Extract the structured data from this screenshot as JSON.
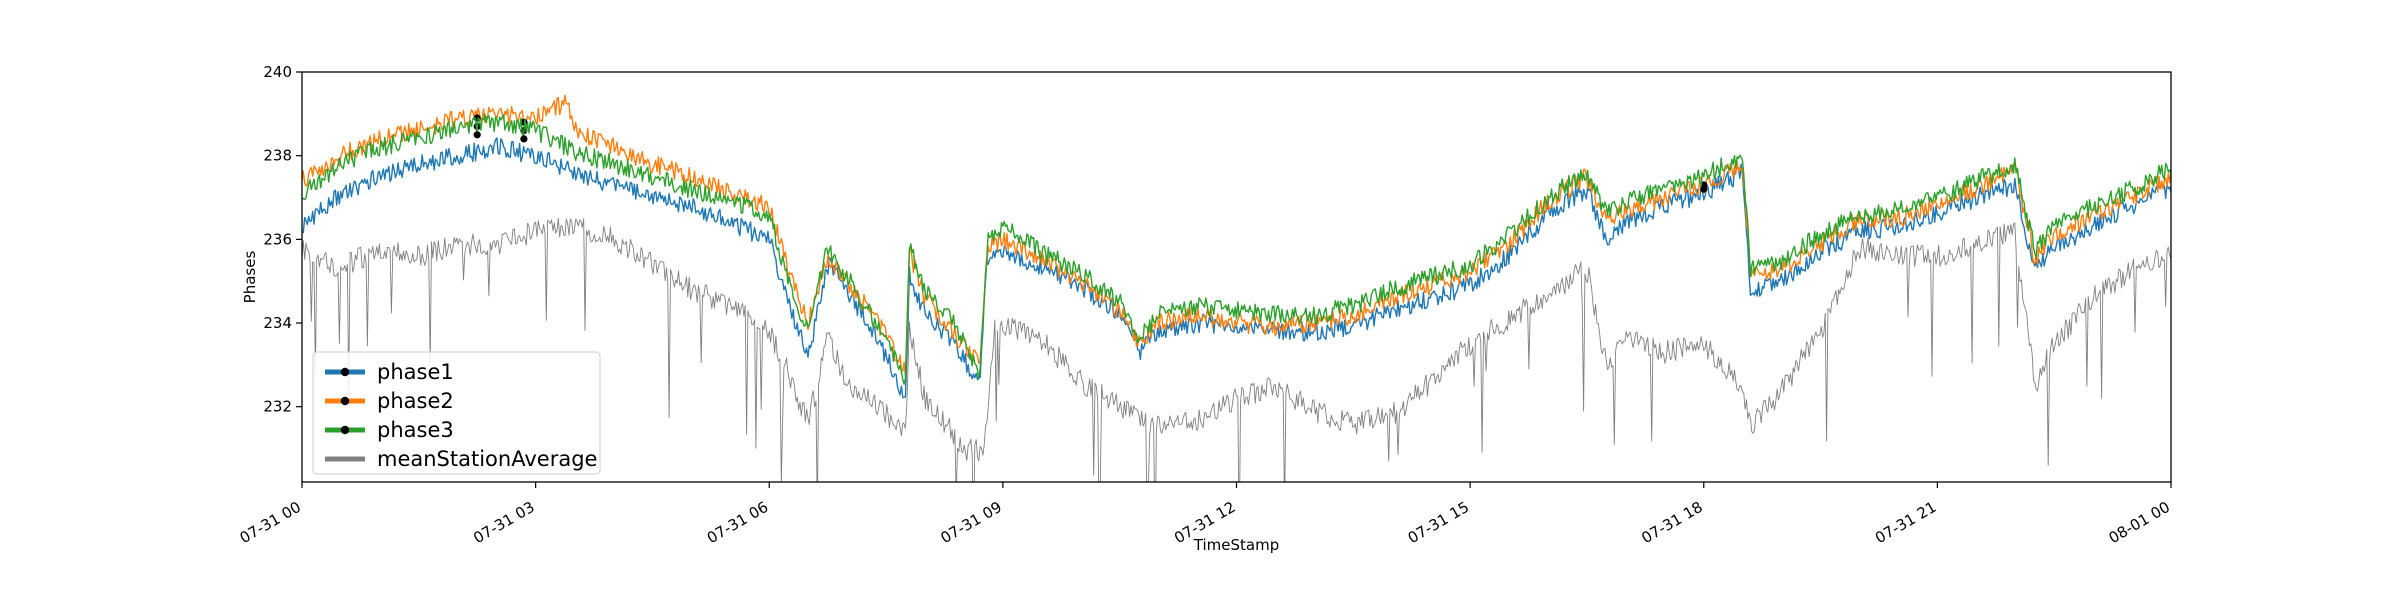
{
  "chart_data": {
    "type": "line",
    "xlabel": "TimeStamp",
    "ylabel": "Phases",
    "xlim": [
      "07-31 00:00",
      "08-01 00:00"
    ],
    "ylim": [
      230.2,
      240.0
    ],
    "x_ticks": [
      "07-31 00",
      "07-31 03",
      "07-31 06",
      "07-31 09",
      "07-31 12",
      "07-31 15",
      "07-31 18",
      "07-31 21",
      "08-01 00"
    ],
    "x_tick_hours": [
      0,
      3,
      6,
      9,
      12,
      15,
      18,
      21,
      24
    ],
    "y_ticks": [
      232,
      234,
      236,
      238,
      240
    ],
    "grid": false,
    "legend_position": "lower-left",
    "series": [
      {
        "name": "phase1",
        "color": "#1f77b4",
        "marker": "black dot",
        "points": [
          [
            0,
            236.3
          ],
          [
            0.5,
            237.1
          ],
          [
            1,
            237.5
          ],
          [
            1.5,
            237.8
          ],
          [
            2,
            238.0
          ],
          [
            2.5,
            238.2
          ],
          [
            3,
            238.0
          ],
          [
            3.5,
            237.6
          ],
          [
            4,
            237.3
          ],
          [
            4.5,
            237.0
          ],
          [
            5,
            236.8
          ],
          [
            5.5,
            236.4
          ],
          [
            6,
            236.0
          ],
          [
            6.25,
            234.5
          ],
          [
            6.5,
            233.2
          ],
          [
            6.75,
            235.4
          ],
          [
            7,
            234.8
          ],
          [
            7.4,
            233.6
          ],
          [
            7.75,
            232.2
          ],
          [
            7.8,
            235.2
          ],
          [
            8,
            234.2
          ],
          [
            8.4,
            233.5
          ],
          [
            8.7,
            232.5
          ],
          [
            8.8,
            235.6
          ],
          [
            9,
            235.8
          ],
          [
            9.5,
            235.3
          ],
          [
            10,
            234.9
          ],
          [
            10.5,
            234.2
          ],
          [
            10.75,
            233.3
          ],
          [
            11,
            233.8
          ],
          [
            11.5,
            234.0
          ],
          [
            12,
            233.9
          ],
          [
            12.5,
            233.8
          ],
          [
            13,
            233.8
          ],
          [
            13.5,
            233.9
          ],
          [
            14,
            234.3
          ],
          [
            14.5,
            234.6
          ],
          [
            15,
            234.9
          ],
          [
            15.5,
            235.6
          ],
          [
            16,
            236.6
          ],
          [
            16.5,
            237.2
          ],
          [
            16.75,
            236.0
          ],
          [
            17,
            236.4
          ],
          [
            17.5,
            236.8
          ],
          [
            18,
            237.1
          ],
          [
            18.5,
            237.6
          ],
          [
            18.6,
            234.8
          ],
          [
            19,
            235.0
          ],
          [
            19.5,
            235.7
          ],
          [
            20,
            236.2
          ],
          [
            20.5,
            236.3
          ],
          [
            21,
            236.6
          ],
          [
            21.5,
            237.0
          ],
          [
            22,
            237.3
          ],
          [
            22.25,
            235.3
          ],
          [
            22.5,
            235.8
          ],
          [
            23,
            236.3
          ],
          [
            23.5,
            236.8
          ],
          [
            24,
            237.2
          ]
        ],
        "markers": [
          [
            2.25,
            238.7
          ],
          [
            2.85,
            238.6
          ],
          [
            18,
            237.3
          ]
        ]
      },
      {
        "name": "phase2",
        "color": "#ff7f0e",
        "marker": "black dot",
        "points": [
          [
            0,
            237.4
          ],
          [
            0.5,
            238.0
          ],
          [
            1,
            238.4
          ],
          [
            1.5,
            238.6
          ],
          [
            2,
            238.9
          ],
          [
            2.5,
            239.0
          ],
          [
            3,
            238.9
          ],
          [
            3.4,
            239.3
          ],
          [
            3.5,
            238.6
          ],
          [
            4,
            238.2
          ],
          [
            4.5,
            237.8
          ],
          [
            5,
            237.5
          ],
          [
            5.5,
            237.1
          ],
          [
            6,
            236.8
          ],
          [
            6.25,
            235.2
          ],
          [
            6.5,
            234.0
          ],
          [
            6.75,
            235.6
          ],
          [
            7,
            235.0
          ],
          [
            7.4,
            234.0
          ],
          [
            7.75,
            232.8
          ],
          [
            7.8,
            235.7
          ],
          [
            8,
            234.6
          ],
          [
            8.4,
            233.7
          ],
          [
            8.7,
            233.0
          ],
          [
            8.8,
            235.8
          ],
          [
            9,
            236.0
          ],
          [
            9.5,
            235.5
          ],
          [
            10,
            235.0
          ],
          [
            10.5,
            234.3
          ],
          [
            10.75,
            233.5
          ],
          [
            11,
            234.0
          ],
          [
            11.5,
            234.2
          ],
          [
            12,
            234.0
          ],
          [
            12.5,
            233.9
          ],
          [
            13,
            234.0
          ],
          [
            13.5,
            234.2
          ],
          [
            14,
            234.6
          ],
          [
            14.5,
            234.9
          ],
          [
            15,
            235.2
          ],
          [
            15.5,
            235.9
          ],
          [
            16,
            236.9
          ],
          [
            16.5,
            237.5
          ],
          [
            16.75,
            236.4
          ],
          [
            17,
            236.7
          ],
          [
            17.5,
            237.0
          ],
          [
            18,
            237.3
          ],
          [
            18.5,
            237.8
          ],
          [
            18.6,
            235.1
          ],
          [
            19,
            235.3
          ],
          [
            19.5,
            235.9
          ],
          [
            20,
            236.5
          ],
          [
            20.5,
            236.5
          ],
          [
            21,
            236.9
          ],
          [
            21.5,
            237.2
          ],
          [
            22,
            237.7
          ],
          [
            22.25,
            235.5
          ],
          [
            22.5,
            236.1
          ],
          [
            23,
            236.6
          ],
          [
            23.5,
            237.0
          ],
          [
            24,
            237.5
          ]
        ],
        "markers": [
          [
            2.25,
            238.9
          ],
          [
            2.85,
            238.8
          ],
          [
            18,
            237.3
          ]
        ]
      },
      {
        "name": "phase3",
        "color": "#2ca02c",
        "marker": "black dot",
        "points": [
          [
            0,
            237.1
          ],
          [
            0.5,
            237.8
          ],
          [
            1,
            238.2
          ],
          [
            1.5,
            238.4
          ],
          [
            2,
            238.7
          ],
          [
            2.5,
            238.8
          ],
          [
            3,
            238.6
          ],
          [
            3.5,
            238.1
          ],
          [
            4,
            237.8
          ],
          [
            4.5,
            237.5
          ],
          [
            5,
            237.2
          ],
          [
            5.5,
            236.9
          ],
          [
            6,
            236.6
          ],
          [
            6.25,
            235.0
          ],
          [
            6.5,
            233.8
          ],
          [
            6.75,
            235.8
          ],
          [
            7,
            235.1
          ],
          [
            7.4,
            233.9
          ],
          [
            7.75,
            232.6
          ],
          [
            7.8,
            235.9
          ],
          [
            8,
            234.8
          ],
          [
            8.4,
            233.9
          ],
          [
            8.7,
            232.8
          ],
          [
            8.8,
            236.0
          ],
          [
            9,
            236.3
          ],
          [
            9.5,
            235.7
          ],
          [
            10,
            235.2
          ],
          [
            10.5,
            234.5
          ],
          [
            10.75,
            233.7
          ],
          [
            11,
            234.2
          ],
          [
            11.5,
            234.4
          ],
          [
            12,
            234.3
          ],
          [
            12.5,
            234.2
          ],
          [
            13,
            234.2
          ],
          [
            13.5,
            234.4
          ],
          [
            14,
            234.8
          ],
          [
            14.5,
            235.1
          ],
          [
            15,
            235.4
          ],
          [
            15.5,
            236.1
          ],
          [
            16,
            237.0
          ],
          [
            16.5,
            237.6
          ],
          [
            16.75,
            236.6
          ],
          [
            17,
            236.9
          ],
          [
            17.5,
            237.2
          ],
          [
            18,
            237.5
          ],
          [
            18.5,
            238.0
          ],
          [
            18.6,
            235.3
          ],
          [
            19,
            235.5
          ],
          [
            19.5,
            236.1
          ],
          [
            20,
            236.6
          ],
          [
            20.5,
            236.7
          ],
          [
            21,
            237.0
          ],
          [
            21.5,
            237.4
          ],
          [
            22,
            237.8
          ],
          [
            22.25,
            235.7
          ],
          [
            22.5,
            236.3
          ],
          [
            23,
            236.8
          ],
          [
            23.5,
            237.2
          ],
          [
            24,
            237.7
          ]
        ],
        "markers": [
          [
            2.25,
            238.5
          ],
          [
            2.85,
            238.4
          ],
          [
            18,
            237.2
          ]
        ]
      },
      {
        "name": "meanStationAverage",
        "color": "#808080",
        "points": [
          [
            0,
            235.8
          ],
          [
            0.5,
            235.3
          ],
          [
            1,
            235.8
          ],
          [
            1.5,
            235.6
          ],
          [
            2,
            235.9
          ],
          [
            2.5,
            235.8
          ],
          [
            3,
            236.2
          ],
          [
            3.5,
            236.3
          ],
          [
            4,
            236.0
          ],
          [
            4.5,
            235.4
          ],
          [
            5,
            234.8
          ],
          [
            5.5,
            234.4
          ],
          [
            6,
            233.8
          ],
          [
            6.25,
            232.8
          ],
          [
            6.5,
            231.6
          ],
          [
            6.75,
            233.6
          ],
          [
            7,
            232.6
          ],
          [
            7.5,
            231.8
          ],
          [
            7.75,
            231.4
          ],
          [
            7.8,
            233.8
          ],
          [
            8,
            232.2
          ],
          [
            8.5,
            231.0
          ],
          [
            8.75,
            230.9
          ],
          [
            8.9,
            234.0
          ],
          [
            9,
            234.0
          ],
          [
            9.5,
            233.6
          ],
          [
            10,
            232.6
          ],
          [
            10.5,
            232.0
          ],
          [
            11,
            231.5
          ],
          [
            11.5,
            231.7
          ],
          [
            12,
            232.2
          ],
          [
            12.5,
            232.5
          ],
          [
            13,
            231.9
          ],
          [
            13.5,
            231.6
          ],
          [
            14,
            231.8
          ],
          [
            14.5,
            232.6
          ],
          [
            15,
            233.5
          ],
          [
            15.5,
            234.1
          ],
          [
            16,
            234.7
          ],
          [
            16.5,
            235.3
          ],
          [
            16.75,
            233.0
          ],
          [
            17,
            233.6
          ],
          [
            17.5,
            233.3
          ],
          [
            18,
            233.5
          ],
          [
            18.5,
            232.5
          ],
          [
            18.6,
            231.5
          ],
          [
            19,
            232.4
          ],
          [
            19.5,
            233.8
          ],
          [
            20,
            235.8
          ],
          [
            20.5,
            235.6
          ],
          [
            21,
            235.6
          ],
          [
            21.5,
            235.9
          ],
          [
            22,
            236.2
          ],
          [
            22.25,
            232.5
          ],
          [
            22.5,
            233.5
          ],
          [
            23,
            234.6
          ],
          [
            23.5,
            235.3
          ],
          [
            24,
            235.6
          ]
        ]
      }
    ]
  }
}
